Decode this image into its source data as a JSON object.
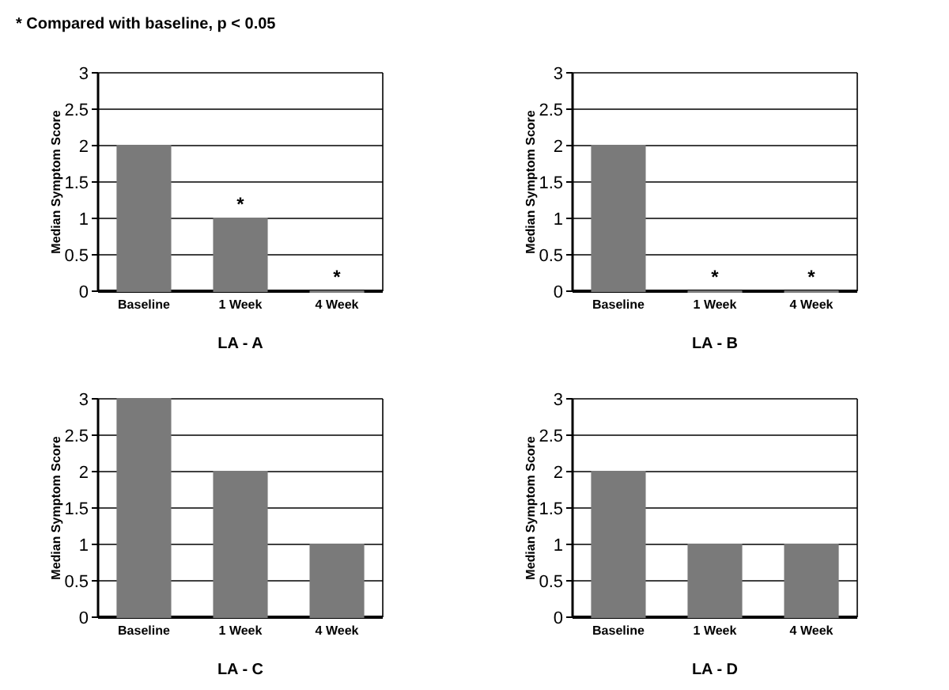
{
  "chart_data": [
    {
      "type": "bar",
      "xlabel": "LA - A",
      "ylabel": "Median Symptom Score",
      "categories": [
        "Baseline",
        "1 Week",
        "4 Week"
      ],
      "values": [
        2,
        1,
        0
      ],
      "color": "#7a7a7a",
      "ylim": [
        0,
        3
      ],
      "yticks": [
        0,
        0.5,
        1,
        1.5,
        2,
        2.5,
        3
      ],
      "grid": "y",
      "annotations": [
        "* Compared with baseline, p < 0.05",
        {
          "text": "*",
          "x": "1 Week",
          "y": 1
        },
        {
          "text": "*",
          "x": "4 Week",
          "y": 0
        }
      ]
    },
    {
      "type": "bar",
      "xlabel": "LA - B",
      "ylabel": "Median Symptom Score",
      "categories": [
        "Baseline",
        "1 Week",
        "4 Week"
      ],
      "values": [
        2,
        0,
        0
      ],
      "color": "#7a7a7a",
      "ylim": [
        0,
        3
      ],
      "yticks": [
        0,
        0.5,
        1,
        1.5,
        2,
        2.5,
        3
      ],
      "grid": "y",
      "annotations": [
        {
          "text": "*",
          "x": "1 Week",
          "y": 0
        },
        {
          "text": "*",
          "x": "4 Week",
          "y": 0
        }
      ]
    },
    {
      "type": "bar",
      "xlabel": "LA - C",
      "ylabel": "Median Symptom Score",
      "categories": [
        "Baseline",
        "1 Week",
        "4 Week"
      ],
      "values": [
        3,
        2,
        1
      ],
      "color": "#7a7a7a",
      "ylim": [
        0,
        3
      ],
      "yticks": [
        0,
        0.5,
        1,
        1.5,
        2,
        2.5,
        3
      ],
      "grid": "y"
    },
    {
      "type": "bar",
      "xlabel": "LA - D",
      "ylabel": "Median Symptom Score",
      "categories": [
        "Baseline",
        "1 Week",
        "4 Week"
      ],
      "values": [
        2,
        1,
        1
      ],
      "color": "#7a7a7a",
      "ylim": [
        0,
        3
      ],
      "yticks": [
        0,
        0.5,
        1,
        1.5,
        2,
        2.5,
        3
      ],
      "grid": "y"
    }
  ]
}
